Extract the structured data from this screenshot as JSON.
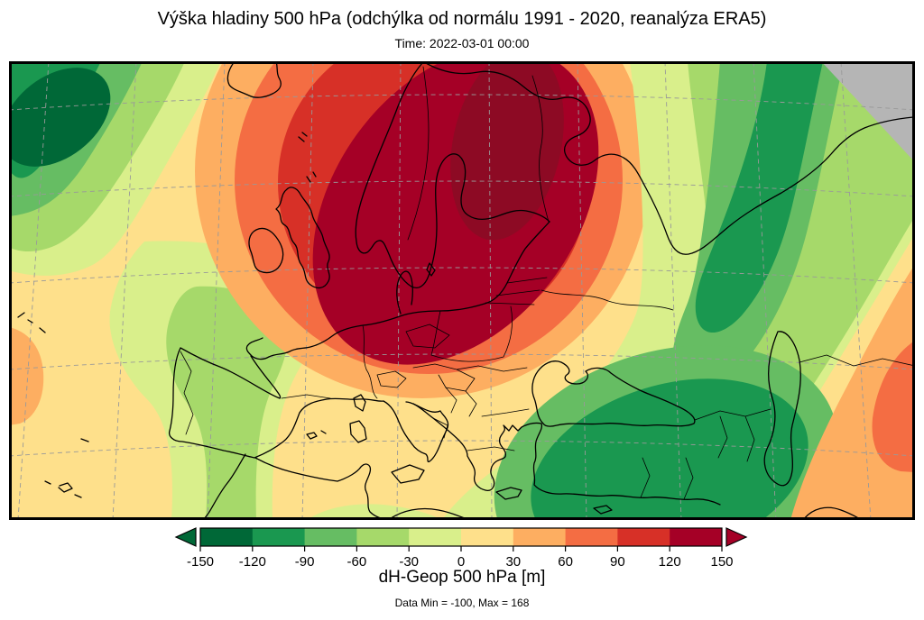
{
  "title": "Výška hladiny 500 hPa (odchýlka od normálu 1991 - 2020, reanalýza ERA5)",
  "subtitle": "Time: 2022-03-01 00:00",
  "footer": "Data Min = -100, Max = 168",
  "colorbar": {
    "label": "dH-Geop 500 hPa [m]",
    "tick_labels": [
      "-150",
      "-120",
      "-90",
      "-60",
      "-30",
      "0",
      "30",
      "60",
      "90",
      "120",
      "150"
    ],
    "segment_colors": [
      "#006837",
      "#1a9850",
      "#66bd63",
      "#a6d96a",
      "#d9ef8b",
      "#fee08b",
      "#fdae61",
      "#f46d43",
      "#d73027",
      "#a50026"
    ],
    "underflow_arrow_color": "#006837",
    "overflow_arrow_color": "#a50026"
  },
  "map": {
    "no_data_color": "#b5b5b5",
    "over_150_color": "#8d0a24",
    "graticule_color": "#999999",
    "coastline_color": "#000000",
    "border_color": "#000000"
  },
  "chart_data": {
    "type": "heatmap",
    "subtype": "filled-contour weather map",
    "title": "Výška hladiny 500 hPa (odchýlka od normálu 1991 - 2020, reanalýza ERA5)",
    "time": "2022-03-01 00:00",
    "variable": "dH-Geop 500 hPa",
    "units": "m",
    "region": "Europe and North Atlantic",
    "contour_levels": [
      -150,
      -120,
      -90,
      -60,
      -30,
      0,
      30,
      60,
      90,
      120,
      150
    ],
    "palette": [
      "#006837",
      "#1a9850",
      "#66bd63",
      "#a6d96a",
      "#d9ef8b",
      "#fee08b",
      "#fdae61",
      "#f46d43",
      "#d73027",
      "#a50026"
    ],
    "data_min": -100,
    "data_max": 168,
    "legend_position": "bottom",
    "grid": true,
    "features": [
      {
        "value_range": "+120 to +168 m",
        "location": "large positive anomaly core over Scandinavia and the Baltic"
      },
      {
        "value_range": "-60 to -100 m",
        "location": "negative anomaly center in the northwest Atlantic (top-left corner)"
      },
      {
        "value_range": "-60 to -90 m",
        "location": "negative anomaly band over Turkey, the Black Sea and northeastern Europe"
      },
      {
        "value_range": "+30 to +90 m",
        "location": "positive anomaly near the Caspian Sea (bottom-right corner)"
      },
      {
        "value_range": "+30 to +60 m",
        "location": "small positive patch at the far west Atlantic edge"
      },
      {
        "value_range": "no data",
        "location": "gray wedge in the top-right corner"
      }
    ]
  }
}
